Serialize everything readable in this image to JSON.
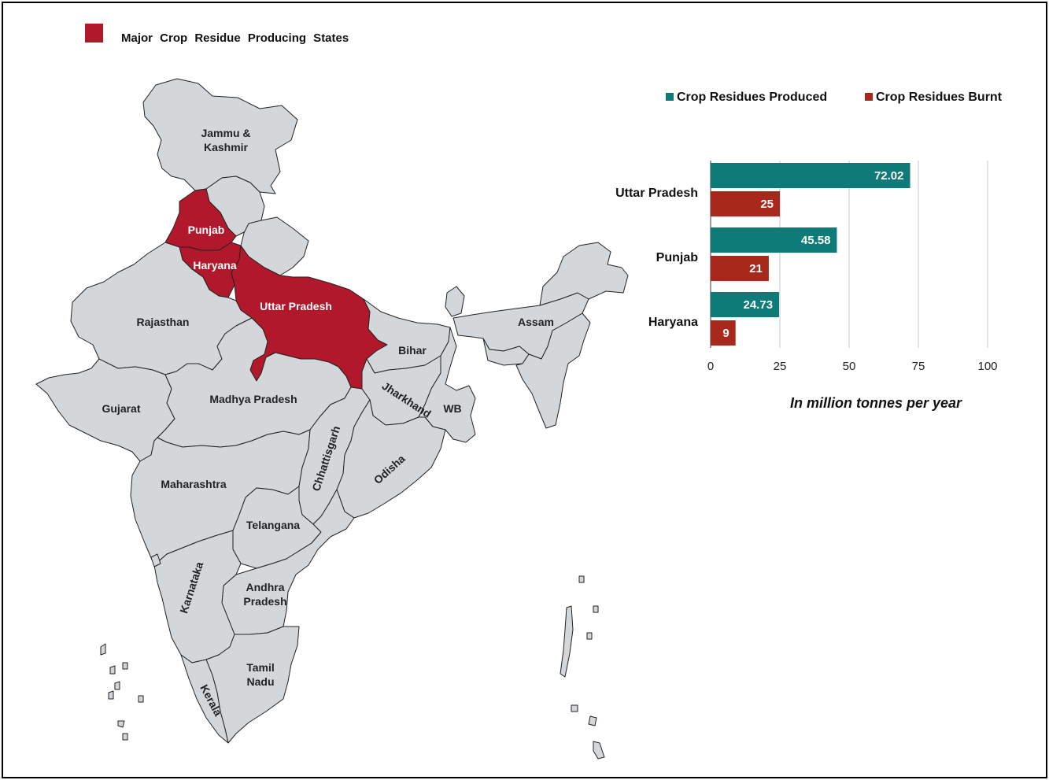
{
  "map": {
    "legend_label": "Major Crop Residue Producing States",
    "highlight_color": "#b2182b",
    "base_color": "#d3d7da",
    "states": {
      "jammu_kashmir": [
        "Jammu &",
        "Kashmir"
      ],
      "punjab": "Punjab",
      "haryana": "Haryana",
      "uttar_pradesh": "Uttar Pradesh",
      "rajasthan": "Rajasthan",
      "bihar": "Bihar",
      "assam": "Assam",
      "gujarat": "Gujarat",
      "madhya_pradesh": "Madhya Pradesh",
      "jharkhand": "Jharkhand",
      "wb": "WB",
      "chhattisgarh": "Chhattisgarh",
      "odisha": "Odisha",
      "maharashtra": "Maharashtra",
      "telangana": "Telangana",
      "karnataka": "Karnataka",
      "andhra_pradesh": [
        "Andhra",
        "Pradesh"
      ],
      "tamil_nadu": [
        "Tamil",
        "Nadu"
      ],
      "kerala": "Kerala"
    }
  },
  "chart_data": {
    "type": "bar",
    "orientation": "horizontal",
    "categories": [
      "Uttar Pradesh",
      "Punjab",
      "Haryana"
    ],
    "series": [
      {
        "name": "Crop Residues Produced",
        "color": "#0f7b78",
        "values": [
          72.02,
          45.58,
          24.73
        ],
        "labels": [
          "72.02",
          "45.58",
          "24.73"
        ]
      },
      {
        "name": "Crop Residues Burnt",
        "color": "#a8291c",
        "values": [
          25,
          21,
          9
        ],
        "labels": [
          "25",
          "21",
          "9"
        ]
      }
    ],
    "xlim": [
      0,
      100
    ],
    "xticks": [
      0,
      25,
      50,
      75,
      100
    ],
    "xlabel": "In million tonnes per year",
    "grid": "vertical",
    "legend": "top"
  }
}
